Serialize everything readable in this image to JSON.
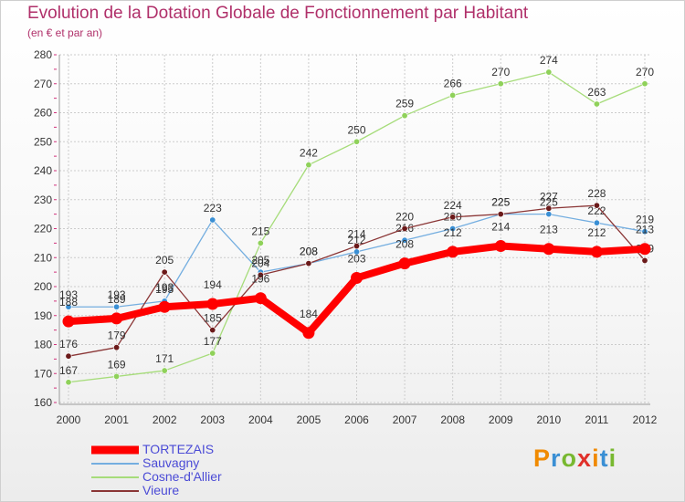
{
  "header": {
    "title": "Evolution de la Dotation Globale de Fonctionnement par Habitant",
    "subtitle": "(en € et par an)"
  },
  "brand": {
    "text": "Proxiti",
    "colors": [
      "#f08a00",
      "#3a8fd4",
      "#78b830",
      "#e0302a",
      "#f08a00",
      "#3a8fd4",
      "#78b830"
    ]
  },
  "chart_data": {
    "type": "line",
    "x": [
      "2000",
      "2001",
      "2002",
      "2003",
      "2004",
      "2005",
      "2006",
      "2007",
      "2008",
      "2009",
      "2010",
      "2011",
      "2012"
    ],
    "yticks": [
      160,
      170,
      180,
      190,
      200,
      210,
      220,
      230,
      240,
      250,
      260,
      270,
      280
    ],
    "ylim": [
      160,
      280
    ],
    "grid": true,
    "legend_position": "bottom-left",
    "series": [
      {
        "name": "Cosne-d'Allier",
        "color": "#8fd15a",
        "line_color": "#a6dc7a",
        "width": 1.3,
        "marker_r": 3.2,
        "values": [
          167,
          169,
          171,
          177,
          215,
          242,
          250,
          259,
          266,
          270,
          274,
          263,
          270
        ],
        "labels": [
          "167",
          "169",
          "171",
          "177",
          "215",
          "242",
          "250",
          "259",
          "266",
          "270",
          "274",
          "263",
          "270"
        ]
      },
      {
        "name": "Sauvagny",
        "color": "#3a8fd4",
        "line_color": "#74aee0",
        "width": 1.3,
        "marker_r": 3.2,
        "values": [
          193,
          193,
          195,
          223,
          205,
          208,
          212,
          216,
          220,
          225,
          225,
          222,
          219
        ],
        "labels": [
          "193",
          "193",
          "195",
          "223",
          "205",
          "208",
          "212",
          "216",
          "220",
          "225",
          "225",
          "222",
          "219"
        ]
      },
      {
        "name": "Vieure",
        "color": "#6b1a1a",
        "line_color": "#8a3535",
        "width": 1.3,
        "marker_r": 3.2,
        "values": [
          176,
          179,
          205,
          185,
          204,
          208,
          214,
          220,
          224,
          225,
          227,
          228,
          209
        ],
        "labels": [
          "176",
          "179",
          "205",
          "185",
          "204",
          "208",
          "214",
          "220",
          "224",
          "225",
          "227",
          "228",
          "209"
        ]
      },
      {
        "name": "TORTEZAIS",
        "color": "#ff0000",
        "line_color": "#ff0000",
        "width": 8,
        "marker_r": 6.5,
        "values": [
          188,
          189,
          193,
          194,
          196,
          184,
          203,
          208,
          212,
          214,
          213,
          212,
          213
        ],
        "labels": [
          "188",
          "189",
          "193",
          "194",
          "196",
          "184",
          "203",
          "208",
          "212",
          "214",
          "213",
          "212",
          "213"
        ]
      }
    ],
    "legend_order": [
      "TORTEZAIS",
      "Sauvagny",
      "Cosne-d'Allier",
      "Vieure"
    ]
  }
}
